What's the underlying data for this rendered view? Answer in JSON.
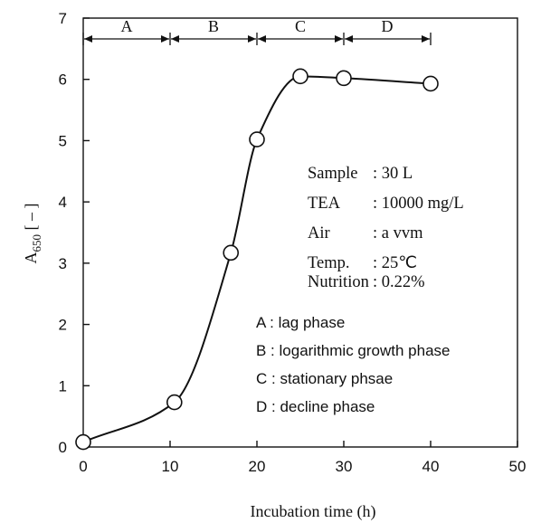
{
  "chart_data": {
    "type": "line",
    "title": "",
    "xlabel": "Incubation time (h)",
    "ylabel_main": "A",
    "ylabel_sub": "650",
    "ylabel_unit": " [ – ]",
    "xlim": [
      0,
      50
    ],
    "ylim": [
      0,
      7
    ],
    "xticks": [
      "0",
      "10",
      "20",
      "30",
      "40",
      "50"
    ],
    "yticks": [
      "0",
      "1",
      "2",
      "3",
      "4",
      "5",
      "6",
      "7"
    ],
    "grid": false,
    "series": [
      {
        "x": [
          0,
          10.5,
          17,
          20,
          25,
          30,
          40
        ],
        "y": [
          0.08,
          0.73,
          3.17,
          5.02,
          6.05,
          6.02,
          5.93
        ]
      }
    ],
    "phases": [
      {
        "label": "A",
        "start": 0,
        "end": 10
      },
      {
        "label": "B",
        "start": 10,
        "end": 20
      },
      {
        "label": "C",
        "start": 20,
        "end": 30
      },
      {
        "label": "D",
        "start": 30,
        "end": 40
      }
    ],
    "conditions": [
      {
        "label": "Sample",
        "value": ": 30 L"
      },
      {
        "label": "TEA",
        "value": ": 10000 mg/L"
      },
      {
        "label": "Air",
        "value": ": a vvm"
      },
      {
        "label": "Temp.",
        "value": ": 25℃"
      },
      {
        "label": "Nutrition",
        "value": ": 0.22%"
      }
    ],
    "phase_legend": [
      "A : lag phase",
      "B : logarithmic growth phase",
      "C : stationary phsae",
      "D : decline phase"
    ]
  }
}
